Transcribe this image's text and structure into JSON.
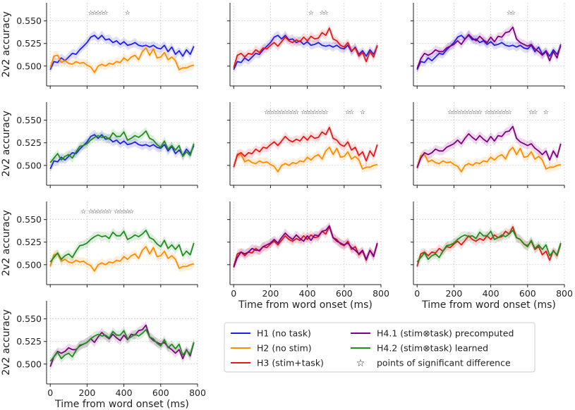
{
  "figure": {
    "xlabel": "Time from word onset (ms)",
    "ylabel": "2v2 accuracy",
    "xlim": [
      -20,
      800
    ],
    "ylim": [
      0.478,
      0.57
    ],
    "xticks": [
      0,
      200,
      400,
      600,
      800
    ],
    "yticks": [
      0.5,
      0.525,
      0.55
    ],
    "ytick_labels": [
      "0.500",
      "0.525",
      "0.550"
    ],
    "grid": true
  },
  "legend": {
    "entries": [
      {
        "key": "H1",
        "label": "H1 (no task)",
        "color": "#1f1fe6"
      },
      {
        "key": "H2",
        "label": "H2 (no stim)",
        "color": "#ff8c00"
      },
      {
        "key": "H3",
        "label": "H3 (stim+task)",
        "color": "#e61919"
      },
      {
        "key": "H41",
        "label": "H4.1 (stim⊗task) precomputed",
        "color": "#800080"
      },
      {
        "key": "H42",
        "label": "H4.2 (stim⊗task) learned",
        "color": "#228b22"
      },
      {
        "key": "sig",
        "label": "points of significant difference",
        "color": "#222222"
      }
    ]
  },
  "chart_data": {
    "type": "line",
    "x": [
      0,
      20,
      40,
      60,
      80,
      100,
      120,
      140,
      160,
      180,
      200,
      220,
      240,
      260,
      280,
      300,
      320,
      340,
      360,
      380,
      400,
      420,
      440,
      460,
      480,
      500,
      520,
      540,
      560,
      580,
      600,
      620,
      640,
      660,
      680,
      700,
      720,
      740,
      760,
      780
    ],
    "series": {
      "H1": [
        0.496,
        0.505,
        0.504,
        0.509,
        0.506,
        0.51,
        0.514,
        0.513,
        0.518,
        0.522,
        0.526,
        0.532,
        0.534,
        0.53,
        0.534,
        0.529,
        0.53,
        0.526,
        0.528,
        0.524,
        0.527,
        0.523,
        0.524,
        0.526,
        0.523,
        0.522,
        0.523,
        0.521,
        0.523,
        0.52,
        0.519,
        0.523,
        0.516,
        0.521,
        0.513,
        0.517,
        0.511,
        0.518,
        0.513,
        0.522
      ],
      "H2": [
        0.498,
        0.511,
        0.512,
        0.504,
        0.506,
        0.503,
        0.502,
        0.505,
        0.503,
        0.504,
        0.501,
        0.499,
        0.493,
        0.5,
        0.502,
        0.5,
        0.503,
        0.502,
        0.505,
        0.504,
        0.509,
        0.506,
        0.51,
        0.512,
        0.507,
        0.516,
        0.52,
        0.512,
        0.519,
        0.509,
        0.51,
        0.515,
        0.507,
        0.51,
        0.506,
        0.496,
        0.498,
        0.498,
        0.5,
        0.501
      ],
      "H3": [
        0.498,
        0.512,
        0.514,
        0.51,
        0.514,
        0.513,
        0.518,
        0.515,
        0.52,
        0.519,
        0.523,
        0.526,
        0.522,
        0.527,
        0.532,
        0.528,
        0.526,
        0.529,
        0.527,
        0.532,
        0.528,
        0.533,
        0.53,
        0.531,
        0.537,
        0.534,
        0.542,
        0.53,
        0.528,
        0.523,
        0.521,
        0.526,
        0.517,
        0.52,
        0.511,
        0.515,
        0.505,
        0.516,
        0.51,
        0.523
      ],
      "H41": [
        0.497,
        0.508,
        0.514,
        0.512,
        0.514,
        0.518,
        0.516,
        0.516,
        0.52,
        0.522,
        0.524,
        0.528,
        0.524,
        0.53,
        0.535,
        0.531,
        0.528,
        0.533,
        0.529,
        0.526,
        0.532,
        0.527,
        0.533,
        0.532,
        0.537,
        0.538,
        0.543,
        0.53,
        0.526,
        0.524,
        0.522,
        0.524,
        0.519,
        0.516,
        0.512,
        0.516,
        0.506,
        0.516,
        0.509,
        0.524
      ],
      "H42": [
        0.503,
        0.508,
        0.513,
        0.506,
        0.51,
        0.512,
        0.508,
        0.515,
        0.521,
        0.522,
        0.524,
        0.528,
        0.531,
        0.533,
        0.531,
        0.532,
        0.529,
        0.536,
        0.532,
        0.532,
        0.537,
        0.528,
        0.53,
        0.533,
        0.531,
        0.534,
        0.538,
        0.53,
        0.528,
        0.523,
        0.52,
        0.527,
        0.518,
        0.522,
        0.517,
        0.522,
        0.51,
        0.515,
        0.511,
        0.524
      ]
    },
    "panels": [
      {
        "id": "r1c1",
        "series": [
          "H1",
          "H2"
        ],
        "stars_x": [
          220,
          240,
          260,
          280,
          300,
          420
        ]
      },
      {
        "id": "r1c2",
        "series": [
          "H1",
          "H3"
        ],
        "stars_x": [
          420,
          480,
          500
        ]
      },
      {
        "id": "r1c3",
        "series": [
          "H1",
          "H41"
        ],
        "stars_x": [
          500,
          520
        ]
      },
      {
        "id": "r2c1",
        "series": [
          "H1",
          "H42"
        ],
        "stars_x": []
      },
      {
        "id": "r2c2",
        "series": [
          "H2",
          "H3"
        ],
        "stars_x": [
          180,
          200,
          220,
          240,
          260,
          280,
          300,
          320,
          340,
          380,
          400,
          420,
          440,
          460,
          480,
          500,
          620,
          640,
          700
        ]
      },
      {
        "id": "r2c3",
        "series": [
          "H2",
          "H41"
        ],
        "stars_x": [
          180,
          200,
          220,
          240,
          260,
          280,
          300,
          320,
          340,
          380,
          400,
          420,
          440,
          460,
          480,
          500,
          620,
          640,
          700
        ]
      },
      {
        "id": "r3c1",
        "series": [
          "H2",
          "H42"
        ],
        "stars_x": [
          180,
          220,
          240,
          260,
          280,
          300,
          320,
          360,
          380,
          400,
          420,
          440
        ]
      },
      {
        "id": "r3c2",
        "series": [
          "H3",
          "H41"
        ],
        "stars_x": []
      },
      {
        "id": "r3c3",
        "series": [
          "H3",
          "H42"
        ],
        "stars_x": []
      },
      {
        "id": "r4c1",
        "series": [
          "H41",
          "H42"
        ],
        "stars_x": []
      }
    ]
  }
}
